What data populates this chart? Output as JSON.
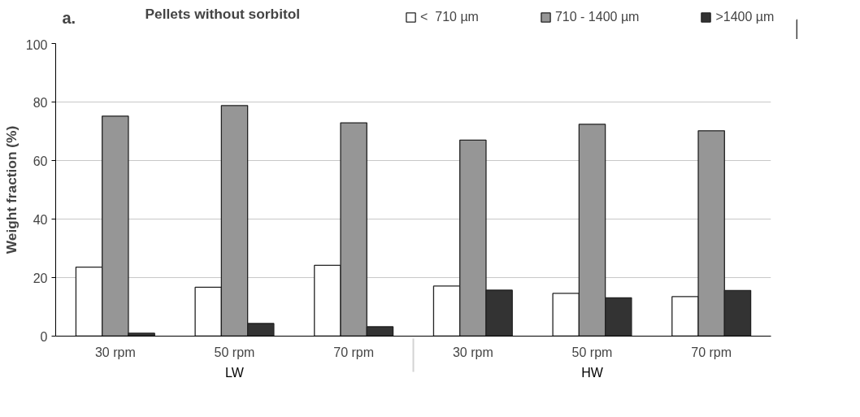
{
  "chart_data": {
    "type": "bar",
    "title": "Pellets without sorbitol",
    "ylabel": "Weight fraction (%)",
    "categories": [
      "30 rpm",
      "50 rpm",
      "70 rpm",
      "30 rpm",
      "50 rpm",
      "70 rpm"
    ],
    "annotations": [
      "a.",
      "LW",
      "HW"
    ],
    "series": [
      {
        "name": "<  710 µm",
        "color": "#ffffff",
        "values": [
          23.6,
          16.7,
          24.2,
          17.1,
          14.6,
          13.5
        ]
      },
      {
        "name": "710 - 1400 µm",
        "color": "#969696",
        "values": [
          75.2,
          78.8,
          72.9,
          67.0,
          72.4,
          70.2
        ]
      },
      {
        "name": ">1400 µm",
        "color": "#333333",
        "values": [
          1.0,
          4.3,
          3.2,
          15.7,
          13.1,
          15.6
        ]
      }
    ],
    "ylim": [
      0,
      100
    ],
    "yticks": [
      0,
      20,
      40,
      60,
      80,
      100
    ],
    "grid": "y",
    "legend": "top"
  }
}
